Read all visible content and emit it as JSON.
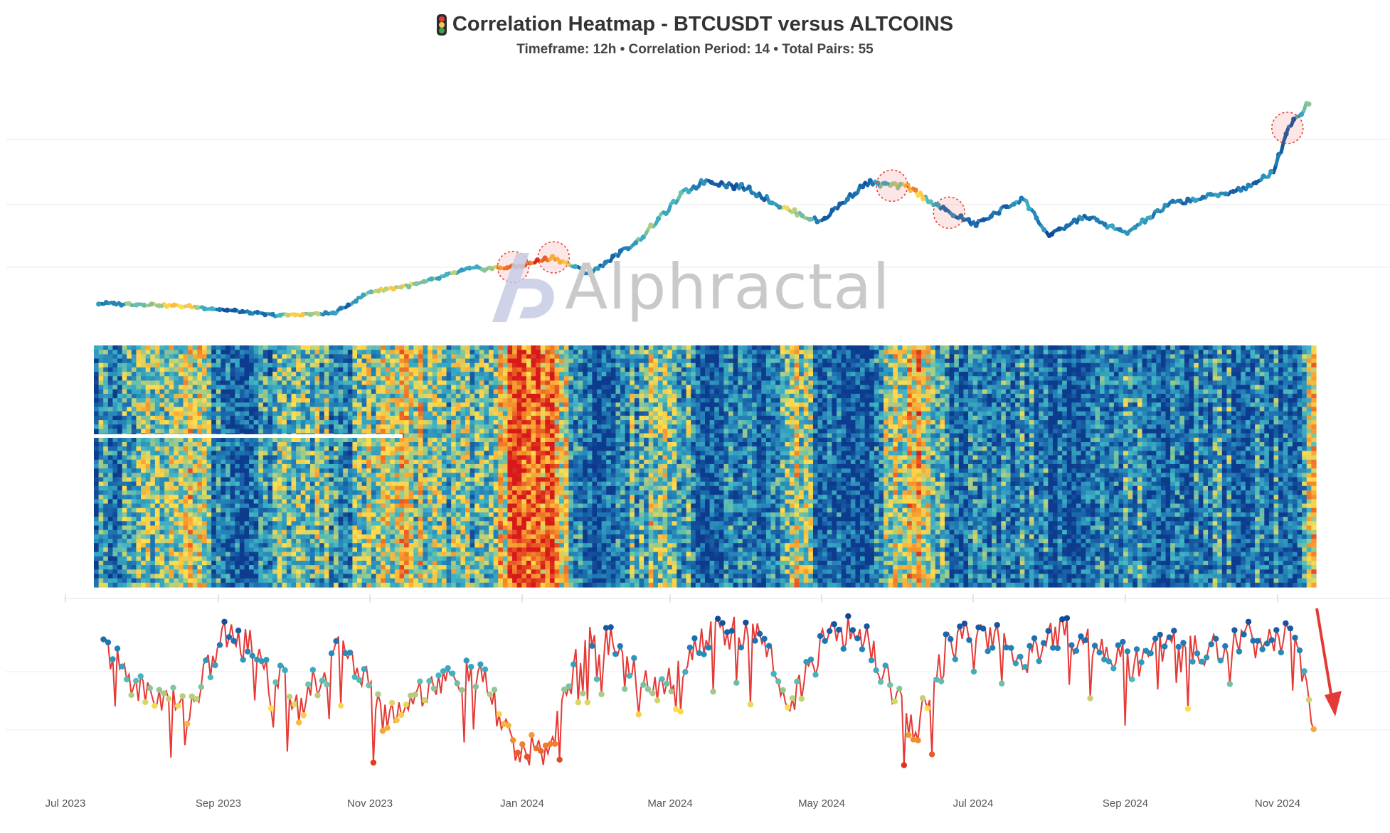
{
  "header": {
    "title": "Correlation Heatmap - BTCUSDT versus ALTCOINS",
    "subtitle": "Timeframe: 12h • Correlation Period: 14  • Total Pairs: 55",
    "traffic_light_colors": [
      "#e53935",
      "#f9c74f",
      "#43a047"
    ]
  },
  "watermark": {
    "text": "Alphractal",
    "color": "#c9c9c9"
  },
  "chart_data": {
    "type": "heatmap",
    "x_ticks": [
      "Jul 2023",
      "Sep 2023",
      "Nov 2023",
      "Jan 2024",
      "Mar 2024",
      "May 2024",
      "Jul 2024",
      "Sep 2024",
      "Nov 2024"
    ],
    "x_range": [
      "2023-07-01",
      "2024-11-25"
    ],
    "grid": true,
    "panels": [
      {
        "name": "price",
        "type": "line",
        "color_by": "average correlation",
        "dates": [
          "2023-07-03",
          "2023-07-25",
          "2023-08-15",
          "2023-09-15",
          "2023-10-10",
          "2023-10-25",
          "2023-11-15",
          "2023-12-05",
          "2023-12-25",
          "2024-01-10",
          "2024-01-25",
          "2024-02-15",
          "2024-03-05",
          "2024-03-14",
          "2024-04-01",
          "2024-04-17",
          "2024-05-01",
          "2024-05-20",
          "2024-06-07",
          "2024-06-24",
          "2024-07-05",
          "2024-07-25",
          "2024-08-05",
          "2024-08-20",
          "2024-09-06",
          "2024-09-25",
          "2024-10-15",
          "2024-10-31",
          "2024-11-08",
          "2024-11-13",
          "2024-11-22"
        ],
        "values": [
          30500,
          30200,
          29200,
          26500,
          27200,
          34500,
          37200,
          42000,
          42800,
          46000,
          40500,
          52000,
          68000,
          72000,
          69000,
          62000,
          58000,
          71000,
          69500,
          61000,
          57000,
          66000,
          53000,
          60000,
          54000,
          64000,
          67000,
          70500,
          76000,
          89500,
          98000
        ]
      },
      {
        "name": "pair correlations",
        "type": "heatmap",
        "rows": 55,
        "colorscale": [
          "#0d3b8e",
          "#1f78b4",
          "#41b6c4",
          "#ffde4d",
          "#f48a2a",
          "#d7191c"
        ]
      },
      {
        "name": "average correlation",
        "type": "line",
        "line_color": "#e53935",
        "dates": [
          "2023-07-05",
          "2023-07-20",
          "2023-08-10",
          "2023-08-25",
          "2023-09-10",
          "2023-09-25",
          "2023-10-15",
          "2023-10-31",
          "2023-11-20",
          "2023-12-10",
          "2023-12-26",
          "2024-01-08",
          "2024-01-22",
          "2024-02-05",
          "2024-02-20",
          "2024-03-10",
          "2024-03-20",
          "2024-04-05",
          "2024-04-20",
          "2024-05-05",
          "2024-05-20",
          "2024-06-10",
          "2024-06-24",
          "2024-07-10",
          "2024-07-25",
          "2024-08-08",
          "2024-08-25",
          "2024-09-10",
          "2024-09-25",
          "2024-10-10",
          "2024-10-25",
          "2024-11-05",
          "2024-11-15",
          "2024-11-24"
        ],
        "values": [
          0.78,
          0.52,
          0.4,
          0.86,
          0.75,
          0.42,
          0.8,
          0.34,
          0.55,
          0.6,
          0.12,
          0.15,
          0.8,
          0.82,
          0.48,
          0.78,
          0.88,
          0.82,
          0.44,
          0.88,
          0.84,
          0.26,
          0.8,
          0.86,
          0.7,
          0.88,
          0.8,
          0.66,
          0.84,
          0.75,
          0.84,
          0.8,
          0.88,
          0.3
        ]
      }
    ],
    "annotation_colors": {
      "highlight_circle": "#e53935",
      "arrow": "#e53935"
    }
  }
}
